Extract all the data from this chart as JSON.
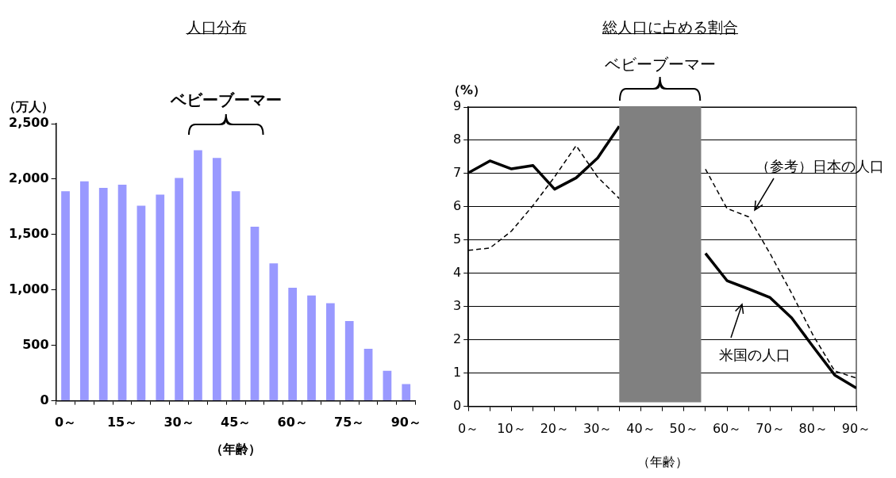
{
  "chart_data": [
    {
      "type": "bar",
      "title": "人口分布",
      "ylabel": "（万人）",
      "xlabel": "（年齢）",
      "categories": [
        "0～",
        null,
        null,
        "15～",
        null,
        null,
        "30～",
        null,
        null,
        "45～",
        null,
        null,
        "60～",
        null,
        null,
        "75～",
        null,
        null,
        "90～"
      ],
      "values": [
        1890,
        1980,
        1920,
        1950,
        1760,
        1860,
        2010,
        2260,
        2190,
        1890,
        1570,
        1240,
        1020,
        950,
        880,
        720,
        470,
        270,
        150
      ],
      "color": "#9999ff",
      "ylim": [
        0,
        2500
      ],
      "yticks": [
        0,
        500,
        {
          "value": 1000,
          "label": "1,000"
        },
        {
          "value": 1500,
          "label": "1,500"
        },
        {
          "value": 2000,
          "label": "2,000"
        },
        {
          "value": 2500,
          "label": "2,500"
        }
      ],
      "annotations": [
        "ベビーブーマー"
      ],
      "grid": false,
      "legend": false
    },
    {
      "type": "line",
      "title": "総人口に占める割合",
      "ylabel": "（%）",
      "xlabel": "（年齢）",
      "x": [
        0,
        5,
        10,
        15,
        20,
        25,
        30,
        35,
        40,
        45,
        50,
        55,
        60,
        65,
        70,
        75,
        80,
        85,
        90
      ],
      "series": [
        {
          "name": "米国の人口",
          "color": "#000000",
          "line_style": "solid",
          "values": [
            7.02,
            7.38,
            7.14,
            7.24,
            6.53,
            6.87,
            7.47,
            8.42,
            null,
            null,
            null,
            4.6,
            3.78,
            3.53,
            3.27,
            2.66,
            1.79,
            0.94,
            0.55
          ]
        },
        {
          "name": "（参考）日本の人口",
          "color": "#000000",
          "line_style": "dashed",
          "values": [
            4.69,
            4.76,
            5.27,
            6.04,
            6.9,
            7.84,
            6.89,
            6.25,
            null,
            null,
            null,
            7.13,
            5.95,
            5.7,
            4.59,
            3.4,
            2.13,
            1.06,
            0.85
          ]
        }
      ],
      "xlim": [
        0,
        90
      ],
      "xticks": [
        {
          "value": 0,
          "label": "0～"
        },
        {
          "value": 5,
          "label": null
        },
        {
          "value": 10,
          "label": "10～"
        },
        {
          "value": 15,
          "label": null
        },
        {
          "value": 20,
          "label": "20～"
        },
        {
          "value": 25,
          "label": null
        },
        {
          "value": 30,
          "label": "30～"
        },
        {
          "value": 35,
          "label": null
        },
        {
          "value": 40,
          "label": "40～"
        },
        {
          "value": 45,
          "label": null
        },
        {
          "value": 50,
          "label": "50～"
        },
        {
          "value": 55,
          "label": null
        },
        {
          "value": 60,
          "label": "60～"
        },
        {
          "value": 65,
          "label": null
        },
        {
          "value": 70,
          "label": "70～"
        },
        {
          "value": 75,
          "label": null
        },
        {
          "value": 80,
          "label": "80～"
        },
        {
          "value": 85,
          "label": null
        },
        {
          "value": 90,
          "label": "90～"
        }
      ],
      "ylim": [
        0,
        9
      ],
      "yticks": [
        0,
        1,
        2,
        3,
        4,
        5,
        6,
        7,
        8,
        9
      ],
      "bands": [
        {
          "axis": "x",
          "from": 35,
          "to": 54,
          "label": "ベビーブーマー",
          "color": "#808080"
        }
      ],
      "grid": "y",
      "legend": "right"
    }
  ]
}
